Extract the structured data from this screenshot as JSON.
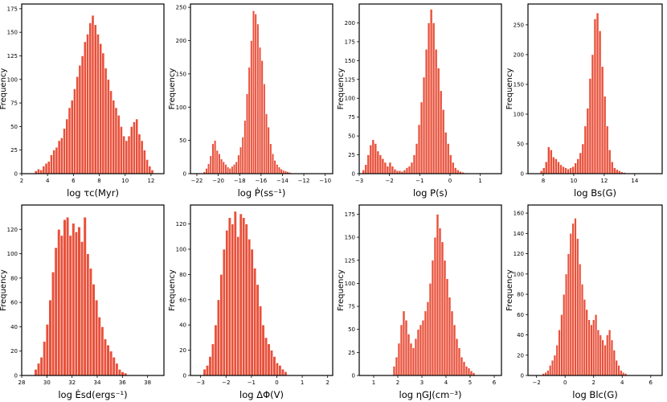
{
  "chart_data": [
    {
      "type": "bar",
      "xlabel": "log τc(Myr)",
      "ylabel": "Frequency",
      "xlim": [
        2,
        13
      ],
      "ylim": [
        0,
        180
      ],
      "xticks": [
        2,
        4,
        6,
        8,
        10,
        12
      ],
      "yticks": [
        0,
        25,
        50,
        75,
        100,
        125,
        150,
        175
      ],
      "bins": {
        "start": 3.0,
        "width": 0.2
      },
      "values": [
        3,
        5,
        4,
        8,
        11,
        13,
        20,
        25,
        28,
        35,
        38,
        48,
        58,
        70,
        78,
        90,
        103,
        115,
        125,
        140,
        148,
        160,
        168,
        158,
        148,
        138,
        128,
        112,
        100,
        88,
        78,
        70,
        62,
        50,
        40,
        35,
        40,
        50,
        55,
        58,
        42,
        35,
        25,
        15,
        8,
        4
      ]
    },
    {
      "type": "bar",
      "xlabel": "log Ṗ(ss⁻¹)",
      "ylabel": "Frequency",
      "xlim": [
        -22.6,
        -9.3
      ],
      "ylim": [
        0,
        255
      ],
      "xticks": [
        -22,
        -20,
        -18,
        -16,
        -14,
        -12,
        -10
      ],
      "yticks": [
        0,
        50,
        100,
        150,
        200,
        250
      ],
      "bins": {
        "start": -21.4,
        "width": 0.2
      },
      "values": [
        3,
        8,
        15,
        27,
        45,
        50,
        35,
        30,
        22,
        18,
        14,
        10,
        8,
        11,
        14,
        18,
        28,
        40,
        55,
        80,
        120,
        160,
        200,
        245,
        240,
        225,
        190,
        170,
        135,
        90,
        70,
        45,
        30,
        20,
        14,
        10,
        7,
        5,
        4,
        3,
        2
      ]
    },
    {
      "type": "bar",
      "xlabel": "log P(s)",
      "ylabel": "Frequency",
      "xlim": [
        -3.0,
        1.7
      ],
      "ylim": [
        0,
        225
      ],
      "xticks": [
        -3,
        -2,
        -1,
        0,
        1
      ],
      "yticks": [
        0,
        25,
        50,
        75,
        100,
        125,
        150,
        175,
        200
      ],
      "bins": {
        "start": -2.9,
        "width": 0.08
      },
      "values": [
        5,
        12,
        25,
        38,
        45,
        40,
        30,
        25,
        20,
        15,
        10,
        15,
        10,
        6,
        4,
        4,
        3,
        5,
        8,
        10,
        15,
        25,
        40,
        65,
        95,
        128,
        165,
        200,
        218,
        200,
        165,
        140,
        110,
        85,
        55,
        40,
        25,
        15,
        8,
        5,
        3,
        2,
        1
      ]
    },
    {
      "type": "bar",
      "xlabel": "log Bs(G)",
      "ylabel": "Frequency",
      "xlim": [
        7.0,
        15.8
      ],
      "ylim": [
        0,
        285
      ],
      "xticks": [
        8,
        10,
        12,
        14
      ],
      "yticks": [
        0,
        50,
        100,
        150,
        200,
        250
      ],
      "bins": {
        "start": 7.8,
        "width": 0.16
      },
      "values": [
        5,
        10,
        20,
        45,
        40,
        28,
        25,
        20,
        15,
        12,
        10,
        8,
        10,
        12,
        18,
        25,
        35,
        50,
        80,
        110,
        160,
        200,
        260,
        270,
        240,
        180,
        130,
        80,
        40,
        20,
        10,
        7,
        5,
        3,
        2
      ]
    },
    {
      "type": "bar",
      "xlabel": "log Ėsd(ergs⁻¹)",
      "ylabel": "Frequency",
      "xlim": [
        28,
        39.3
      ],
      "ylim": [
        0,
        140
      ],
      "xticks": [
        28,
        30,
        32,
        34,
        36,
        38
      ],
      "yticks": [
        0,
        20,
        40,
        60,
        80,
        100,
        120
      ],
      "bins": {
        "start": 29.0,
        "width": 0.23
      },
      "values": [
        5,
        10,
        15,
        28,
        42,
        62,
        85,
        105,
        120,
        115,
        128,
        130,
        115,
        125,
        118,
        122,
        110,
        130,
        100,
        88,
        75,
        62,
        48,
        40,
        30,
        25,
        20,
        15,
        10,
        5,
        3,
        2
      ]
    },
    {
      "type": "bar",
      "xlabel": "log ΔΦ(V)",
      "ylabel": "Frequency",
      "xlim": [
        -3.4,
        2.2
      ],
      "ylim": [
        0,
        135
      ],
      "xticks": [
        -3,
        -2,
        -1,
        0,
        1,
        2
      ],
      "yticks": [
        0,
        20,
        40,
        60,
        80,
        100,
        120
      ],
      "bins": {
        "start": -2.9,
        "width": 0.11
      },
      "values": [
        5,
        8,
        15,
        25,
        40,
        60,
        80,
        100,
        115,
        125,
        120,
        130,
        110,
        128,
        125,
        120,
        108,
        100,
        85,
        72,
        55,
        40,
        30,
        25,
        20,
        15,
        10,
        8,
        5,
        3
      ]
    },
    {
      "type": "bar",
      "xlabel": "log ηGJ(cm⁻³)",
      "ylabel": "Frequency",
      "xlim": [
        0.4,
        6.3
      ],
      "ylim": [
        0,
        185
      ],
      "xticks": [
        1,
        2,
        3,
        4,
        5,
        6
      ],
      "yticks": [
        0,
        25,
        50,
        75,
        100,
        125,
        150,
        175
      ],
      "bins": {
        "start": 1.8,
        "width": 0.1
      },
      "values": [
        10,
        20,
        35,
        55,
        70,
        60,
        45,
        35,
        30,
        40,
        50,
        55,
        60,
        70,
        80,
        100,
        125,
        150,
        175,
        160,
        145,
        125,
        105,
        85,
        70,
        55,
        40,
        30,
        20,
        15,
        10,
        8,
        5,
        3
      ]
    },
    {
      "type": "bar",
      "xlabel": "log Blc(G)",
      "ylabel": "Frequency",
      "xlim": [
        -2.6,
        6.8
      ],
      "ylim": [
        0,
        168
      ],
      "xticks": [
        -2,
        0,
        2,
        4,
        6
      ],
      "yticks": [
        0,
        20,
        40,
        60,
        80,
        100,
        120,
        140,
        160
      ],
      "bins": {
        "start": -1.6,
        "width": 0.16
      },
      "values": [
        2,
        3,
        5,
        10,
        15,
        20,
        30,
        45,
        60,
        80,
        100,
        120,
        140,
        150,
        155,
        135,
        110,
        90,
        75,
        65,
        55,
        50,
        55,
        60,
        45,
        40,
        35,
        30,
        40,
        45,
        35,
        25,
        15,
        10,
        5,
        3,
        2
      ]
    }
  ]
}
